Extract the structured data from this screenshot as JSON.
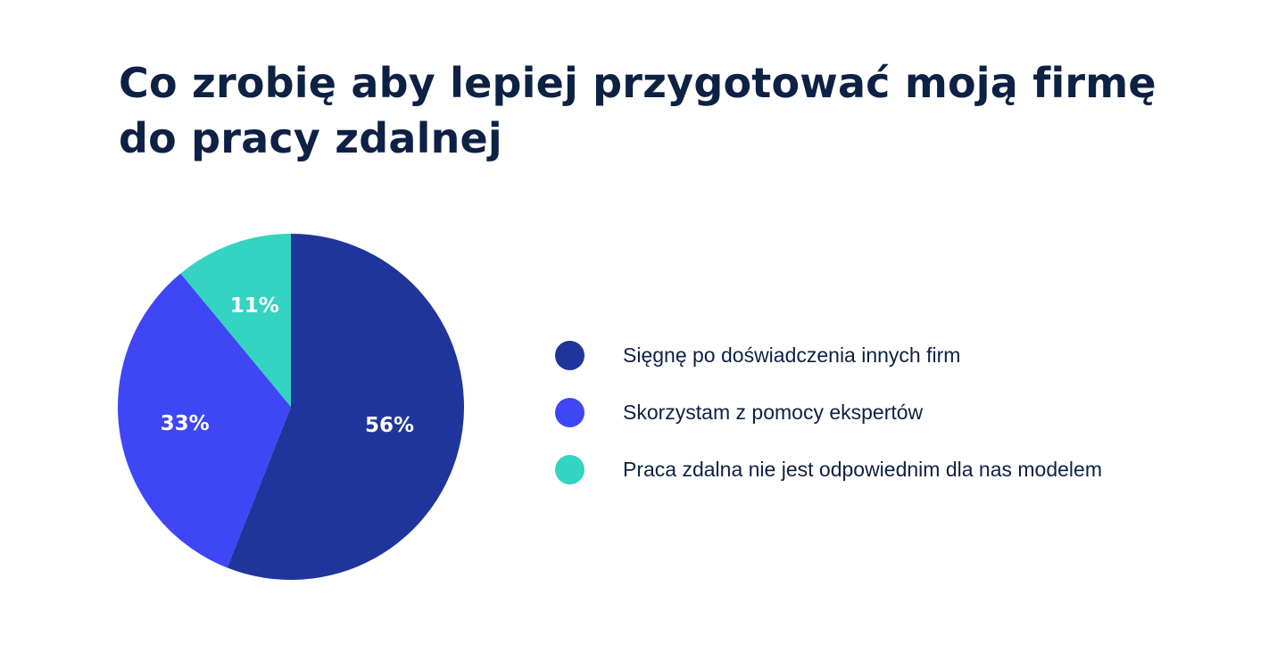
{
  "title": "Co zrobię aby lepiej przygotować moją firmę do pracy zdalnej",
  "colors": {
    "text": "#0d2145",
    "label": "#ffffff"
  },
  "chart_data": {
    "type": "pie",
    "title": "Co zrobię aby lepiej przygotować moją firmę do pracy zdalnej",
    "start": "top, clockwise",
    "legend_position": "right",
    "slices": [
      {
        "name": "Sięgnę po doświadczenia innych firm",
        "value": 56,
        "label": "56%",
        "color": "#1f359c"
      },
      {
        "name": "Skorzystam z pomocy ekspertów",
        "value": 33,
        "label": "33%",
        "color": "#3f46f5"
      },
      {
        "name": "Praca zdalna nie jest odpowiednim dla nas modelem",
        "value": 11,
        "label": "11%",
        "color": "#34d3c2"
      }
    ]
  }
}
